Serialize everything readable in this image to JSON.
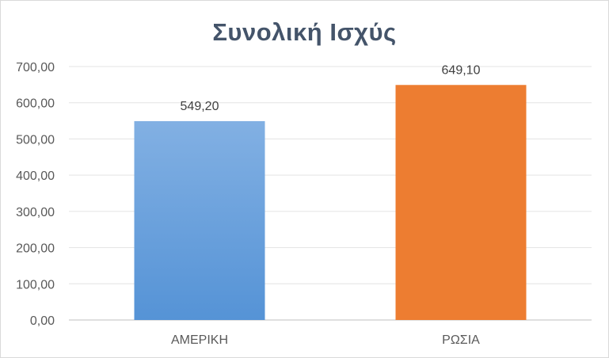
{
  "chart_data": {
    "type": "bar",
    "title": "Συνολική Ισχύς",
    "categories": [
      "ΑΜΕΡΙΚΗ",
      "ΡΩΣΙΑ"
    ],
    "values": [
      549.2,
      649.1
    ],
    "data_labels": [
      "549,20",
      "649,10"
    ],
    "bar_colors": [
      "#5b9bd5",
      "#ed7d31"
    ],
    "ylim": [
      0,
      700
    ],
    "yticks": [
      0,
      100,
      200,
      300,
      400,
      500,
      600,
      700
    ],
    "ytick_labels": [
      "0,00",
      "100,00",
      "200,00",
      "300,00",
      "400,00",
      "500,00",
      "600,00",
      "700,00"
    ],
    "grid": true,
    "legend": "none"
  }
}
